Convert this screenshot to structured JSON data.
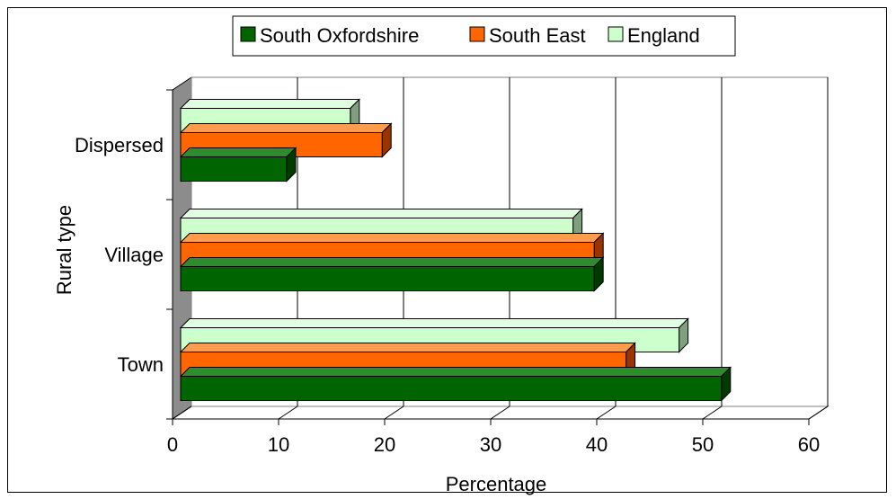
{
  "chart_data": {
    "type": "bar",
    "orientation": "horizontal",
    "three_d": true,
    "categories": [
      "Town",
      "Village",
      "Dispersed"
    ],
    "series": [
      {
        "name": "South Oxfordshire",
        "color": "#006400",
        "side_color": "#003a00",
        "top_color": "#2e8b2e",
        "values": [
          51,
          39,
          10
        ]
      },
      {
        "name": "South East",
        "color": "#ff6600",
        "side_color": "#993300",
        "top_color": "#ff9c4d",
        "values": [
          42,
          39,
          19
        ]
      },
      {
        "name": "England",
        "color": "#ccffcc",
        "side_color": "#7f9f7f",
        "top_color": "#e0ffe0",
        "values": [
          47,
          37,
          16
        ]
      }
    ],
    "xlabel": "Percentage",
    "ylabel": "Rural type",
    "xlim": [
      0,
      60
    ],
    "xticks": [
      0,
      10,
      20,
      30,
      40,
      50,
      60
    ],
    "grid": true,
    "legend_position": "top"
  }
}
